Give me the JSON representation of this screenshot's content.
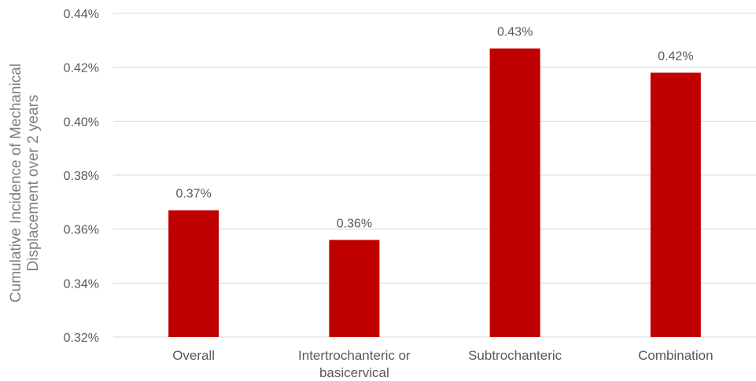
{
  "chart_data": {
    "type": "bar",
    "title": "",
    "xlabel": "",
    "ylabel_lines": [
      "Cumulative Incidence of Mechanical",
      "Displacement over 2 years"
    ],
    "categories": [
      [
        "Overall"
      ],
      [
        "Intertrochanteric or",
        "basicervical"
      ],
      [
        "Subtrochanteric"
      ],
      [
        "Combination"
      ]
    ],
    "values": [
      0.367,
      0.356,
      0.427,
      0.418
    ],
    "data_labels": [
      "0.37%",
      "0.36%",
      "0.43%",
      "0.42%"
    ],
    "ylim": [
      0.32,
      0.44
    ],
    "yticks": [
      0.32,
      0.34,
      0.36,
      0.38,
      0.4,
      0.42,
      0.44
    ],
    "ytick_labels": [
      "0.32%",
      "0.34%",
      "0.36%",
      "0.38%",
      "0.40%",
      "0.42%",
      "0.44%"
    ],
    "bar_color": "#c00000",
    "grid": true,
    "legend": "none"
  }
}
